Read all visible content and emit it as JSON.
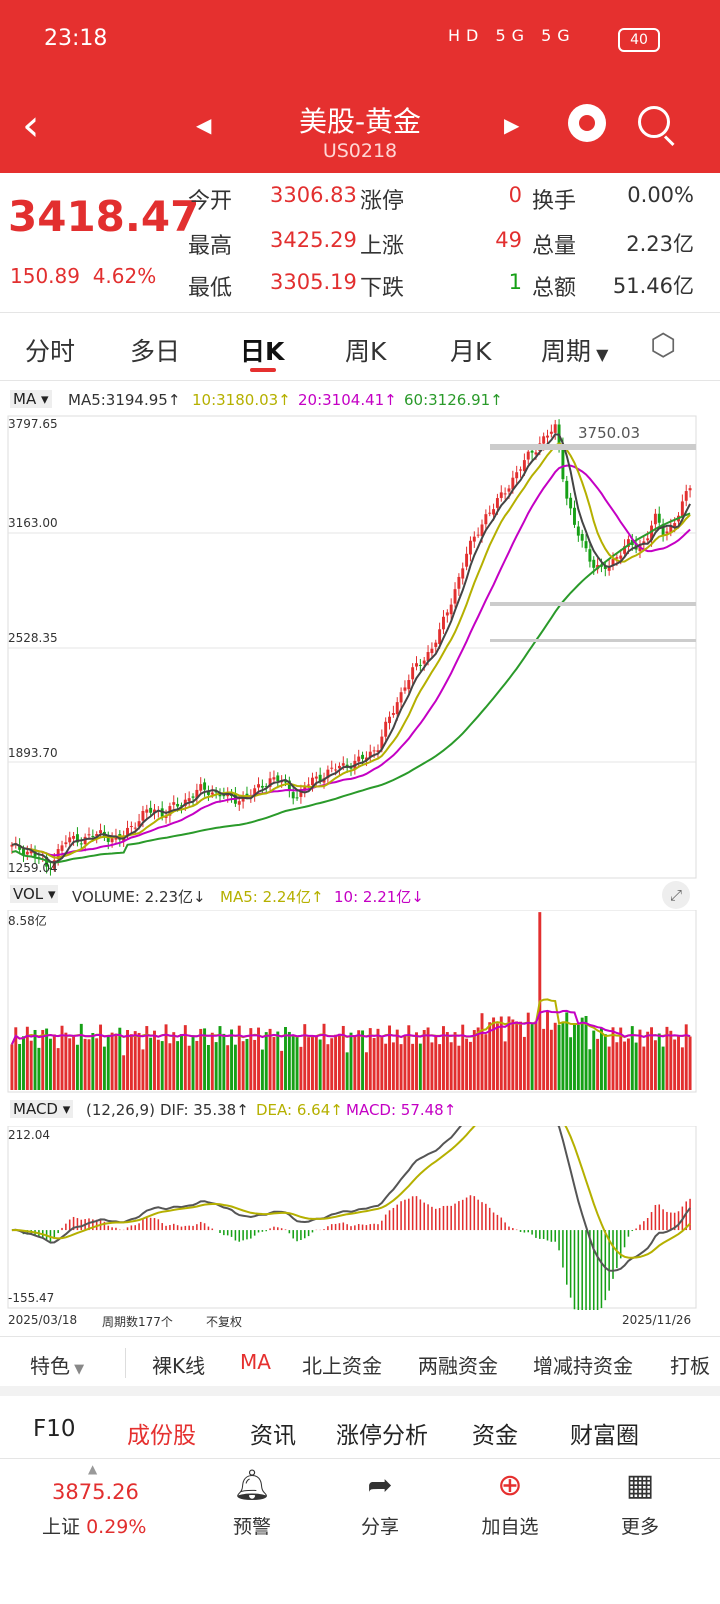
{
  "status": {
    "time": "23:18",
    "icons": "HD 5G 5G",
    "battery": "40"
  },
  "header": {
    "title": "美股-黄金",
    "code": "US0218"
  },
  "quote": {
    "price": "3418.47",
    "change": "150.89",
    "change_pct": "4.62%",
    "open_label": "今开",
    "open": "3306.83",
    "high_label": "最高",
    "high": "3425.29",
    "low_label": "最低",
    "low": "3305.19",
    "limit_up_label": "涨停",
    "limit_up": "0",
    "rise_label": "上涨",
    "rise": "49",
    "fall_label": "下跌",
    "fall": "1",
    "turnover_label": "换手",
    "turnover": "0.00%",
    "volume_label": "总量",
    "volume": "2.23亿",
    "amount_label": "总额",
    "amount": "51.46亿"
  },
  "tabs": [
    "分时",
    "多日",
    "日K",
    "周K",
    "月K",
    "周期"
  ],
  "ma_legend": {
    "selector": "MA",
    "ma5": "MA5:3194.95↑",
    "ma10": "10:3180.03↑",
    "ma20": "20:3104.41↑",
    "ma60": "60:3126.91↑"
  },
  "vol_legend": {
    "selector": "VOL",
    "volume": "VOLUME: 2.23亿↓",
    "ma5": "MA5: 2.24亿↑",
    "ma10": "10: 2.21亿↓"
  },
  "macd_legend": {
    "selector": "MACD",
    "params": "(12,26,9)",
    "dif": "DIF: 35.38↑",
    "dea": "DEA: 6.64↑",
    "macd": "MACD: 57.48↑"
  },
  "axes": {
    "price_ticks": [
      "3797.65",
      "3163.00",
      "2528.35",
      "1893.70",
      "1259.04"
    ],
    "peak_label": "3750.03",
    "vol_max": "8.58亿",
    "macd_max": "212.04",
    "macd_min": "-155.47",
    "date_start": "2025/03/18",
    "period_count": "周期数177个",
    "adjust": "不复权",
    "date_end": "2025/11/26"
  },
  "colors": {
    "up": "#e22f2f",
    "down": "#16a016",
    "ma5": "#333333",
    "ma10": "#b5b000",
    "ma20": "#c400c4",
    "ma60": "#2a9a2a",
    "accent": "#e5302f"
  },
  "feature_bar": [
    "特色",
    "裸K线",
    "MA",
    "北上资金",
    "两融资金",
    "增减持资金",
    "打板"
  ],
  "bottom_tabs": [
    "F10",
    "成份股",
    "资讯",
    "涨停分析",
    "资金",
    "财富圈"
  ],
  "footer": {
    "index_value": "3875.26",
    "index_name": "上证",
    "index_change": "0.29%",
    "nav": [
      {
        "label": "预警",
        "icon": "bell-icon"
      },
      {
        "label": "分享",
        "icon": "share-icon"
      },
      {
        "label": "加自选",
        "icon": "add-icon"
      },
      {
        "label": "更多",
        "icon": "grid-icon"
      }
    ]
  },
  "chart_data": {
    "type": "candlestick",
    "x_range": [
      "2025/03/18",
      "2025/11/26"
    ],
    "periods": 177,
    "price_range": [
      1259.04,
      3797.65
    ],
    "price_path": [
      1420,
      1410,
      1390,
      1360,
      1300,
      1380,
      1450,
      1470,
      1460,
      1480,
      1500,
      1470,
      1450,
      1520,
      1560,
      1610,
      1630,
      1600,
      1640,
      1660,
      1700,
      1740,
      1730,
      1720,
      1700,
      1680,
      1700,
      1720,
      1760,
      1800,
      1790,
      1740,
      1700,
      1760,
      1800,
      1820,
      1850,
      1870,
      1880,
      1900,
      1930,
      1980,
      2100,
      2200,
      2320,
      2400,
      2450,
      2520,
      2620,
      2750,
      2900,
      3050,
      3150,
      3250,
      3300,
      3380,
      3450,
      3520,
      3600,
      3650,
      3700,
      3750,
      3400,
      3200,
      3100,
      3000,
      2950,
      2980,
      3050,
      3100,
      3080,
      3120,
      3250,
      3160,
      3200,
      3300,
      3418
    ],
    "ma5": 3194.95,
    "ma10": 3180.03,
    "ma20": 3104.41,
    "ma60": 3126.91,
    "volume_max": "8.58亿",
    "volume_last": "2.23亿",
    "macd_range": [
      -155.47,
      212.04
    ],
    "dif": 35.38,
    "dea": 6.64,
    "macd": 57.48
  }
}
